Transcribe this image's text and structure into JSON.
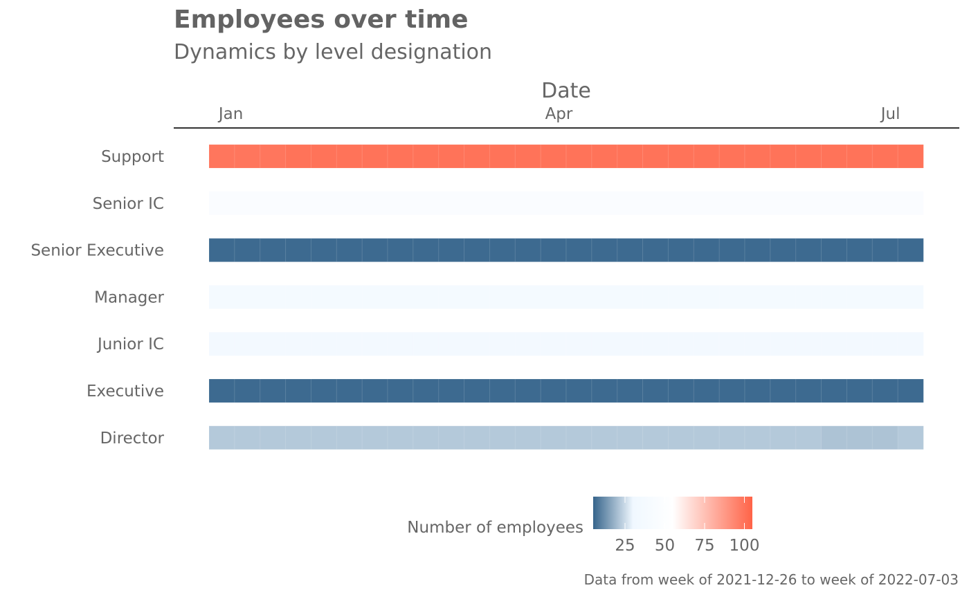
{
  "chart_data": {
    "type": "heatmap",
    "title": "Employees over time",
    "subtitle": "Dynamics by level designation",
    "xlabel": "Date",
    "x_axis_position": "top",
    "x_ticks": [
      {
        "label": "Jan",
        "date": "2022-01-01"
      },
      {
        "label": "Apr",
        "date": "2022-04-01"
      },
      {
        "label": "Jul",
        "date": "2022-07-01"
      }
    ],
    "x": [
      "2021-12-26",
      "2022-01-02",
      "2022-01-09",
      "2022-01-16",
      "2022-01-23",
      "2022-01-30",
      "2022-02-06",
      "2022-02-13",
      "2022-02-20",
      "2022-02-27",
      "2022-03-06",
      "2022-03-13",
      "2022-03-20",
      "2022-03-27",
      "2022-04-03",
      "2022-04-10",
      "2022-04-17",
      "2022-04-24",
      "2022-05-01",
      "2022-05-08",
      "2022-05-15",
      "2022-05-22",
      "2022-05-29",
      "2022-06-05",
      "2022-06-12",
      "2022-06-19",
      "2022-06-26",
      "2022-07-03"
    ],
    "categories": [
      "Support",
      "Senior IC",
      "Senior Executive",
      "Manager",
      "Junior IC",
      "Executive",
      "Director"
    ],
    "values": [
      [
        99,
        99,
        99,
        100,
        100,
        100,
        100,
        100,
        100,
        100,
        100,
        100,
        100,
        100,
        100,
        100,
        100,
        100,
        100,
        100,
        100,
        100,
        100,
        100,
        100,
        100,
        100,
        100
      ],
      [
        46,
        46,
        46,
        46,
        46,
        46,
        46,
        46,
        46,
        46,
        46,
        46,
        46,
        46,
        46,
        46,
        46,
        46,
        46,
        46,
        46,
        46,
        46,
        46,
        46,
        46,
        46,
        46
      ],
      [
        6,
        6,
        6,
        6,
        6,
        6,
        6,
        6,
        6,
        6,
        6,
        6,
        6,
        6,
        6,
        6,
        6,
        6,
        6,
        6,
        6,
        6,
        6,
        6,
        6,
        6,
        6,
        6
      ],
      [
        36,
        36,
        36,
        36,
        36,
        36,
        36,
        36,
        36,
        36,
        36,
        36,
        36,
        36,
        36,
        36,
        36,
        36,
        36,
        36,
        36,
        36,
        36,
        36,
        36,
        36,
        36,
        36
      ],
      [
        35,
        35,
        35,
        35,
        35,
        35,
        35,
        35,
        35,
        35,
        35,
        35,
        35,
        35,
        35,
        35,
        35,
        35,
        35,
        35,
        35,
        35,
        35,
        35,
        35,
        35,
        35,
        35
      ],
      [
        6,
        6,
        6,
        6,
        6,
        6,
        6,
        6,
        6,
        6,
        6,
        6,
        6,
        6,
        6,
        6,
        6,
        6,
        6,
        6,
        6,
        6,
        6,
        6,
        6,
        6,
        6,
        6
      ],
      [
        22,
        22,
        22,
        22,
        22,
        22,
        22,
        22,
        22,
        22,
        22,
        22,
        22,
        22,
        22,
        22,
        22,
        22,
        22,
        22,
        22,
        22,
        22,
        22,
        21,
        21,
        21,
        22
      ]
    ],
    "legend": {
      "title": "Number of employees",
      "position": "bottom",
      "range": [
        5,
        105
      ],
      "ticks": [
        25,
        50,
        75,
        100
      ],
      "colors": [
        {
          "value": 5,
          "color": "#36648b"
        },
        {
          "value": 30,
          "color": "#f0f8ff"
        },
        {
          "value": 55,
          "color": "#ffffff"
        },
        {
          "value": 105,
          "color": "#ff6347"
        }
      ]
    },
    "caption": "Data from week of 2021-12-26 to week of 2022-07-03"
  }
}
